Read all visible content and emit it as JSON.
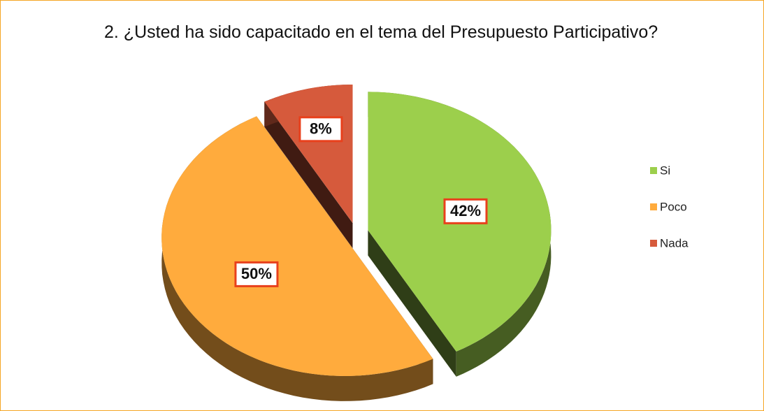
{
  "chart_data": {
    "type": "pie",
    "title": "2. ¿Usted ha sido capacitado en el tema del Presupuesto Participativo?",
    "categories": [
      "Si",
      "Poco",
      "Nada"
    ],
    "values": [
      42,
      50,
      8
    ],
    "value_labels": [
      "42%",
      "50%",
      "8%"
    ],
    "colors": [
      "#9ccf4c",
      "#ffab3d",
      "#d65a3c"
    ],
    "legend": "right"
  }
}
